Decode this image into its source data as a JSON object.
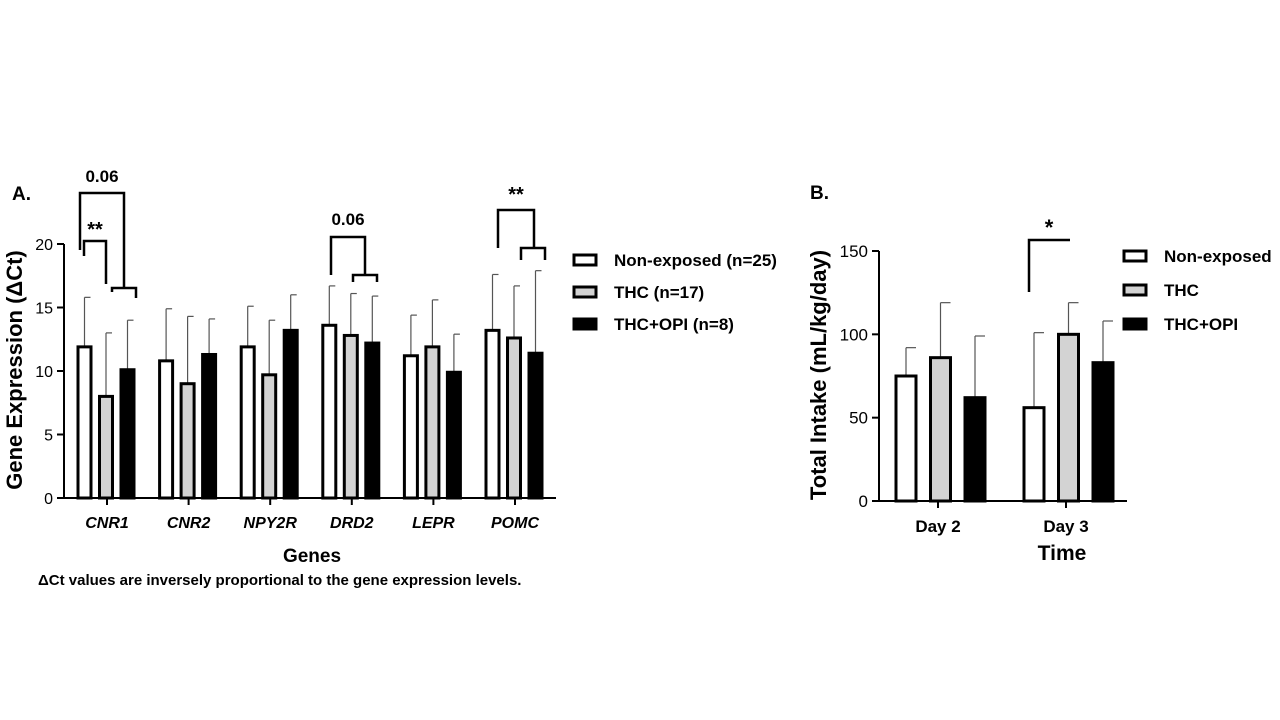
{
  "colors": {
    "non_exposed": "#ffffff",
    "thc": "#d3d3d3",
    "thc_opi": "#000000"
  },
  "chart_data": [
    {
      "type": "bar",
      "panel_label": "A.",
      "xlabel": "Genes",
      "ylabel": "Gene Expression (ΔCt)",
      "ylim": [
        0,
        20
      ],
      "yticks": [
        "0",
        "5",
        "10",
        "15",
        "20"
      ],
      "categories": [
        "CNR1",
        "CNR2",
        "NPY2R",
        "DRD2",
        "LEPR",
        "POMC"
      ],
      "series": [
        {
          "name": "Non-exposed (n=25)",
          "values": [
            11.9,
            10.8,
            11.9,
            13.6,
            11.2,
            13.2
          ],
          "errors": [
            3.9,
            4.1,
            3.2,
            3.1,
            3.2,
            4.4
          ]
        },
        {
          "name": "THC (n=17)",
          "values": [
            8.0,
            9.0,
            9.7,
            12.8,
            11.9,
            12.6
          ],
          "errors": [
            5.0,
            5.3,
            4.3,
            3.3,
            3.7,
            4.1
          ]
        },
        {
          "name": "THC+OPI (n=8)",
          "values": [
            10.1,
            11.3,
            13.2,
            12.2,
            9.9,
            11.4
          ],
          "errors": [
            3.9,
            2.8,
            2.8,
            3.7,
            3.0,
            6.5
          ]
        }
      ],
      "annotations": [
        "0.06",
        "**",
        "0.06",
        "**"
      ],
      "footnote": "ΔCt values are inversely proportional to the gene expression levels.",
      "legend_position": "right"
    },
    {
      "type": "bar",
      "panel_label": "B.",
      "xlabel": "Time",
      "ylabel": "Total Intake (mL/kg/day)",
      "ylim": [
        0,
        150
      ],
      "yticks": [
        "0",
        "50",
        "100",
        "150"
      ],
      "categories": [
        "Day 2",
        "Day 3"
      ],
      "series": [
        {
          "name": "Non-exposed",
          "values": [
            75,
            56
          ],
          "errors": [
            17,
            45
          ]
        },
        {
          "name": "THC",
          "values": [
            86,
            100
          ],
          "errors": [
            33,
            19
          ]
        },
        {
          "name": "THC+OPI",
          "values": [
            62,
            83
          ],
          "errors": [
            37,
            25
          ]
        }
      ],
      "annotations": [
        "*"
      ],
      "legend_position": "right"
    }
  ]
}
